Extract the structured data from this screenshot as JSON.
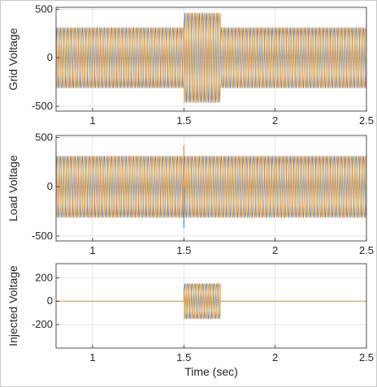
{
  "chart_data": [
    {
      "type": "line",
      "title": "",
      "xlabel": "",
      "ylabel": "Grid Voltage",
      "xlim": [
        0.8,
        2.5
      ],
      "ylim": [
        -550,
        520
      ],
      "xticks": [
        1,
        1.5,
        2,
        2.5
      ],
      "xtick_labels": [
        "1",
        "1.5",
        "2",
        "2.5"
      ],
      "yticks": [
        -500,
        0,
        500
      ],
      "ytick_labels": [
        "-500",
        "0",
        "500"
      ],
      "grid": true,
      "series": [
        {
          "color": "#3b78c4",
          "phase_deg": 0
        },
        {
          "color": "#e8752a",
          "phase_deg": 120
        },
        {
          "color": "#d9b340",
          "phase_deg": 240
        }
      ],
      "waveform": {
        "frequency_hz": 50,
        "segments": [
          {
            "x_start": 0.8,
            "x_end": 1.5,
            "amplitude": 311
          },
          {
            "x_start": 1.5,
            "x_end": 1.7,
            "amplitude": 460
          },
          {
            "x_start": 1.7,
            "x_end": 2.5,
            "amplitude": 311
          }
        ]
      }
    },
    {
      "type": "line",
      "title": "",
      "xlabel": "",
      "ylabel": "Load Voltage",
      "xlim": [
        0.8,
        2.5
      ],
      "ylim": [
        -550,
        520
      ],
      "xticks": [
        1,
        1.5,
        2,
        2.5
      ],
      "xtick_labels": [
        "1",
        "1.5",
        "2",
        "2.5"
      ],
      "yticks": [
        -500,
        0,
        500
      ],
      "ytick_labels": [
        "-500",
        "0",
        "500"
      ],
      "grid": true,
      "series": [
        {
          "color": "#3b78c4",
          "phase_deg": 0
        },
        {
          "color": "#e8752a",
          "phase_deg": 120
        },
        {
          "color": "#d9b340",
          "phase_deg": 240
        }
      ],
      "waveform": {
        "frequency_hz": 50,
        "segments": [
          {
            "x_start": 0.8,
            "x_end": 2.5,
            "amplitude": 311
          }
        ]
      },
      "annotations": [
        {
          "x": 1.5,
          "y": 420,
          "note": "transient spike"
        },
        {
          "x": 1.5,
          "y": -420,
          "note": "transient spike"
        }
      ]
    },
    {
      "type": "line",
      "title": "",
      "xlabel": "Time (sec)",
      "ylabel": "Injected Voltage",
      "xlim": [
        0.8,
        2.5
      ],
      "ylim": [
        -400,
        320
      ],
      "xticks": [
        1,
        1.5,
        2,
        2.5
      ],
      "xtick_labels": [
        "1",
        "1.5",
        "2",
        "2.5"
      ],
      "yticks": [
        -200,
        0,
        200
      ],
      "ytick_labels": [
        "-200",
        "0",
        "200"
      ],
      "grid": true,
      "series": [
        {
          "color": "#3b78c4",
          "phase_deg": 0
        },
        {
          "color": "#e8752a",
          "phase_deg": 120
        },
        {
          "color": "#d9b340",
          "phase_deg": 240
        }
      ],
      "waveform": {
        "frequency_hz": 50,
        "segments": [
          {
            "x_start": 0.8,
            "x_end": 1.5,
            "amplitude": 0
          },
          {
            "x_start": 1.5,
            "x_end": 1.7,
            "amplitude": 150
          },
          {
            "x_start": 1.7,
            "x_end": 2.5,
            "amplitude": 0
          }
        ]
      }
    }
  ]
}
